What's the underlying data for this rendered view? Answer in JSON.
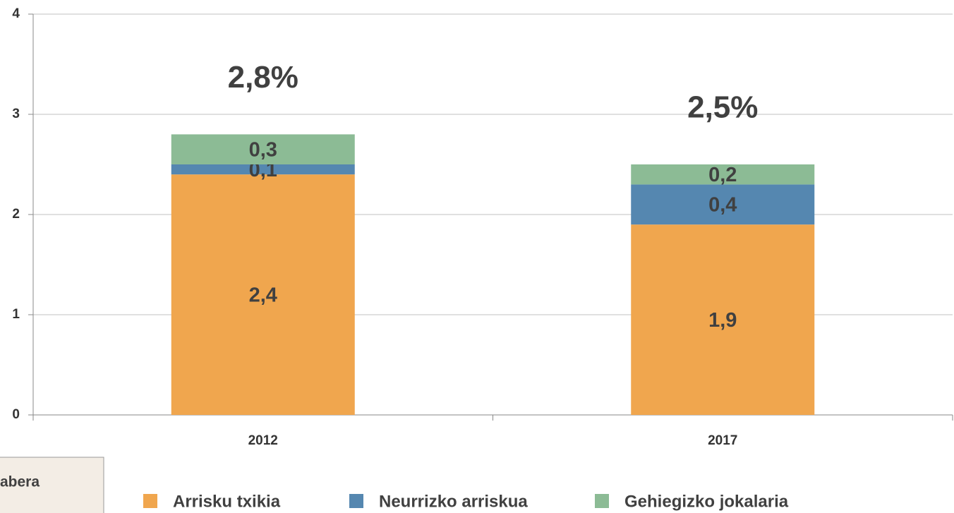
{
  "chart_data": {
    "type": "stacked_bar",
    "categories": [
      "2012",
      "2017"
    ],
    "series": [
      {
        "name": "Arrisku txikia",
        "color": "#f0a64e",
        "values": [
          2.4,
          1.9
        ],
        "value_labels": [
          "2,4",
          "1,9"
        ]
      },
      {
        "name": "Neurrizko arriskua",
        "color": "#5587b0",
        "values": [
          0.1,
          0.4
        ],
        "value_labels": [
          "0,1",
          "0,4"
        ]
      },
      {
        "name": "Gehiegizko jokalaria",
        "color": "#8cbb95",
        "values": [
          0.3,
          0.2
        ],
        "value_labels": [
          "0,3",
          "0,2"
        ]
      }
    ],
    "total_labels": [
      "2,8%",
      "2,5%"
    ],
    "ylim": [
      0,
      4
    ],
    "yticks": [
      0,
      1,
      2,
      3,
      4
    ],
    "grid": true,
    "legend": "bottom",
    "note": "abera"
  }
}
